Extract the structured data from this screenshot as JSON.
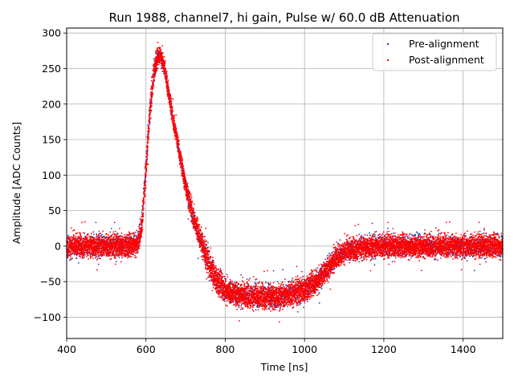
{
  "chart_data": {
    "type": "scatter",
    "title": "Run 1988, channel7, hi gain, Pulse w/ 60.0 dB Attenuation",
    "xlabel": "Time [ns]",
    "ylabel": "Amplitude [ADC Counts]",
    "xlim": [
      400,
      1500
    ],
    "ylim": [
      -130,
      307
    ],
    "xticks": [
      400,
      600,
      800,
      1000,
      1200,
      1400
    ],
    "yticks": [
      -100,
      -50,
      0,
      50,
      100,
      150,
      200,
      250,
      300
    ],
    "grid": true,
    "legend_position": "upper-right",
    "series": [
      {
        "name": "Pre-alignment",
        "color": "#1f3fbf",
        "marker": "point",
        "envelope": {
          "x": [
            400,
            560,
            580,
            590,
            600,
            610,
            620,
            630,
            635,
            640,
            650,
            660,
            680,
            700,
            720,
            740,
            760,
            780,
            800,
            850,
            900,
            950,
            1000,
            1030,
            1060,
            1080,
            1100,
            1150,
            1200,
            1300,
            1400,
            1500
          ],
          "center": [
            0,
            0,
            5,
            30,
            110,
            190,
            245,
            268,
            270,
            265,
            240,
            205,
            145,
            85,
            40,
            5,
            -28,
            -50,
            -62,
            -70,
            -72,
            -70,
            -62,
            -50,
            -30,
            -16,
            -8,
            -2,
            0,
            0,
            0,
            0
          ],
          "halfwidth": [
            22,
            22,
            22,
            24,
            26,
            26,
            24,
            20,
            18,
            18,
            18,
            18,
            18,
            20,
            22,
            24,
            26,
            26,
            24,
            24,
            24,
            24,
            24,
            24,
            22,
            22,
            22,
            22,
            22,
            22,
            22,
            22
          ]
        }
      },
      {
        "name": "Post-alignment",
        "color": "#ff0000",
        "marker": "point",
        "envelope": {
          "x": [
            400,
            560,
            580,
            590,
            600,
            610,
            620,
            630,
            635,
            640,
            650,
            660,
            680,
            700,
            720,
            740,
            760,
            780,
            800,
            850,
            900,
            950,
            1000,
            1030,
            1060,
            1080,
            1100,
            1150,
            1200,
            1300,
            1400,
            1500
          ],
          "center": [
            0,
            0,
            5,
            30,
            110,
            190,
            245,
            268,
            270,
            265,
            240,
            205,
            145,
            85,
            40,
            5,
            -28,
            -50,
            -62,
            -70,
            -72,
            -70,
            -62,
            -50,
            -30,
            -16,
            -8,
            -2,
            0,
            0,
            0,
            0
          ],
          "halfwidth": [
            22,
            22,
            22,
            24,
            26,
            26,
            24,
            20,
            18,
            18,
            18,
            18,
            18,
            20,
            22,
            24,
            26,
            26,
            24,
            24,
            24,
            24,
            24,
            24,
            22,
            22,
            22,
            22,
            22,
            22,
            22,
            22
          ]
        }
      }
    ]
  }
}
